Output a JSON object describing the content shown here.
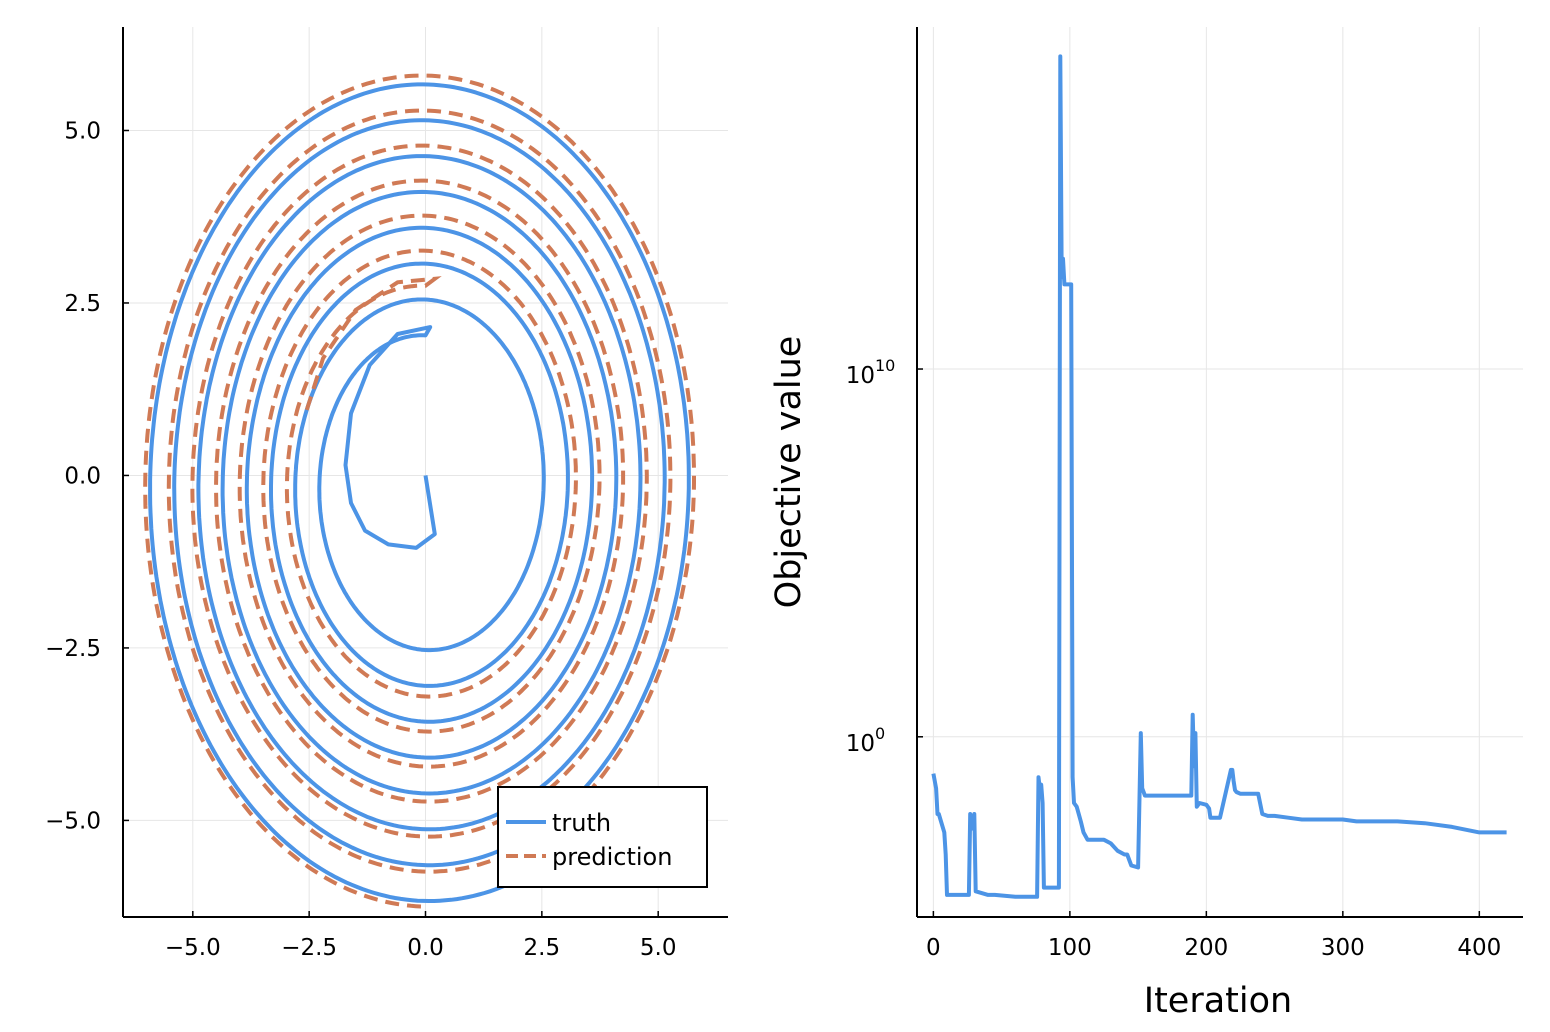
{
  "chart_data": [
    {
      "type": "line",
      "title": "",
      "xlabel": "",
      "ylabel": "",
      "xlim": [
        -6.5,
        6.5
      ],
      "ylim": [
        -6.4,
        6.5
      ],
      "xticks": [
        -5.0,
        -2.5,
        0.0,
        2.5,
        5.0
      ],
      "xtick_labels": [
        "−5.0",
        "−2.5",
        "0.0",
        "2.5",
        "5.0"
      ],
      "yticks": [
        -5.0,
        -2.5,
        0.0,
        2.5,
        5.0
      ],
      "ytick_labels": [
        "−5.0",
        "−2.5",
        "0.0",
        "2.5",
        "5.0"
      ],
      "grid": true,
      "legend_position": "bottom-right",
      "series": [
        {
          "name": "truth",
          "color": "#4c94e6",
          "style": "solid",
          "spiral": {
            "start_radius": 0.0,
            "end_radius": 6.1,
            "turns": 8.25,
            "x_scale": 1.0,
            "y_scale": 1.0
          },
          "points_inner": [
            [
              0.0,
              0.0
            ],
            [
              0.2,
              -0.85
            ],
            [
              -0.2,
              -1.05
            ],
            [
              -0.8,
              -1.0
            ],
            [
              -1.3,
              -0.8
            ],
            [
              -1.6,
              -0.4
            ],
            [
              -1.72,
              0.15
            ],
            [
              -1.6,
              0.9
            ],
            [
              -1.2,
              1.6
            ],
            [
              -0.6,
              2.05
            ],
            [
              0.1,
              2.15
            ]
          ]
        },
        {
          "name": "prediction",
          "color": "#d07a55",
          "style": "dashed",
          "points_inner": [
            [
              -2.55,
              0.95
            ],
            [
              -2.2,
              1.7
            ],
            [
              -1.5,
              2.4
            ],
            [
              -0.6,
              2.8
            ],
            [
              0.2,
              2.85
            ]
          ]
        }
      ]
    },
    {
      "type": "line",
      "title": "",
      "xlabel": "Iteration",
      "ylabel": "Objective value",
      "xlim": [
        -12,
        432
      ],
      "yscale": "log10",
      "ylim_log10": [
        -4.9,
        19.3
      ],
      "xticks": [
        0,
        100,
        200,
        300,
        400
      ],
      "xtick_labels": [
        "0",
        "100",
        "200",
        "300",
        "400"
      ],
      "yticks_log10": [
        0,
        10
      ],
      "ytick_labels": [
        {
          "base": "10",
          "exp": "0"
        },
        {
          "base": "10",
          "exp": "10"
        }
      ],
      "grid": true,
      "series": [
        {
          "name": "",
          "color": "#4c94e6",
          "x": [
            0,
            2,
            3,
            4,
            8,
            9,
            10,
            11,
            26,
            27,
            28,
            30,
            31,
            40,
            45,
            60,
            62,
            76,
            77,
            78,
            79,
            80,
            81,
            92,
            93,
            94,
            95,
            96,
            97,
            101,
            102,
            103,
            105,
            108,
            110,
            113,
            125,
            130,
            135,
            140,
            142,
            145,
            150,
            152,
            153,
            154,
            155,
            158,
            160,
            170,
            189,
            190,
            191,
            192,
            193,
            195,
            200,
            202,
            203,
            205,
            210,
            218,
            219,
            220,
            221,
            222,
            225,
            230,
            238,
            241,
            245,
            250,
            260,
            270,
            280,
            300,
            310,
            320,
            340,
            360,
            380,
            400,
            410,
            420
          ],
          "y_log10": [
            -1.0,
            -1.4,
            -2.1,
            -2.1,
            -2.6,
            -3.2,
            -4.3,
            -4.3,
            -4.3,
            -2.1,
            -2.5,
            -2.1,
            -4.2,
            -4.3,
            -4.3,
            -4.35,
            -4.35,
            -4.35,
            -1.1,
            -1.4,
            -1.3,
            -1.8,
            -4.1,
            -4.1,
            18.5,
            12.5,
            13.0,
            12.3,
            12.3,
            12.3,
            -1.1,
            -1.8,
            -1.9,
            -2.3,
            -2.6,
            -2.8,
            -2.8,
            -2.9,
            -3.1,
            -3.2,
            -3.2,
            -3.5,
            -3.55,
            0.1,
            -1.4,
            -1.5,
            -1.6,
            -1.6,
            -1.6,
            -1.6,
            -1.6,
            0.6,
            -0.8,
            0.1,
            -1.9,
            -1.8,
            -1.85,
            -1.95,
            -2.2,
            -2.2,
            -2.2,
            -0.9,
            -0.9,
            -1.2,
            -1.45,
            -1.5,
            -1.55,
            -1.55,
            -1.55,
            -2.1,
            -2.15,
            -2.15,
            -2.2,
            -2.25,
            -2.25,
            -2.25,
            -2.3,
            -2.3,
            -2.3,
            -2.35,
            -2.45,
            -2.6,
            -2.6,
            -2.6
          ]
        }
      ]
    }
  ]
}
